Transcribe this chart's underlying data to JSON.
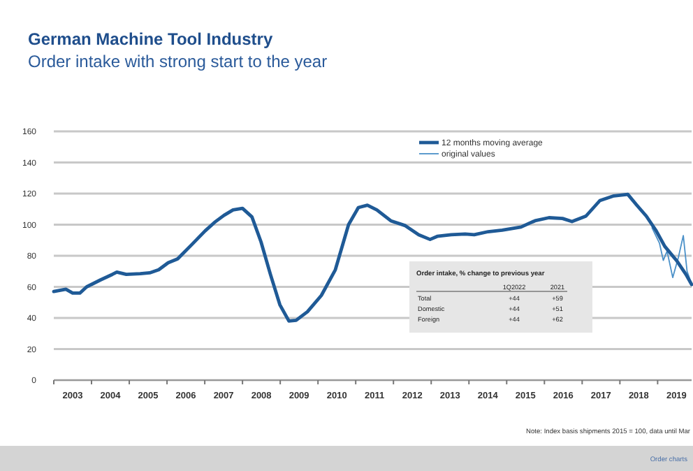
{
  "chart_data": {
    "type": "line",
    "title": "German Machine  Tool Industry",
    "subtitle": "Order intake with strong start to the year",
    "xlim": [
      2003,
      2019.9
    ],
    "xticks": [
      {
        "value": 2003,
        "label": null
      },
      {
        "value": 2003.5,
        "label": "2003"
      },
      {
        "value": 2004,
        "label": null
      },
      {
        "value": 2004.5,
        "label": "2004"
      },
      {
        "value": 2005,
        "label": null
      },
      {
        "value": 2005.5,
        "label": "2005"
      },
      {
        "value": 2006,
        "label": null
      },
      {
        "value": 2006.5,
        "label": "2006"
      },
      {
        "value": 2007,
        "label": null
      },
      {
        "value": 2007.5,
        "label": "2007"
      },
      {
        "value": 2008,
        "label": null
      },
      {
        "value": 2008.5,
        "label": "2008"
      },
      {
        "value": 2009,
        "label": null
      },
      {
        "value": 2009.5,
        "label": "2009"
      },
      {
        "value": 2010,
        "label": null
      },
      {
        "value": 2010.5,
        "label": "2010"
      },
      {
        "value": 2011,
        "label": null
      },
      {
        "value": 2011.5,
        "label": "2011"
      },
      {
        "value": 2012,
        "label": null
      },
      {
        "value": 2012.5,
        "label": "2012"
      },
      {
        "value": 2013,
        "label": null
      },
      {
        "value": 2013.5,
        "label": "2013"
      },
      {
        "value": 2014,
        "label": null
      },
      {
        "value": 2014.5,
        "label": "2014"
      },
      {
        "value": 2015,
        "label": null
      },
      {
        "value": 2015.5,
        "label": "2015"
      },
      {
        "value": 2016,
        "label": null
      },
      {
        "value": 2016.5,
        "label": "2016"
      },
      {
        "value": 2017,
        "label": null
      },
      {
        "value": 2017.5,
        "label": "2017"
      },
      {
        "value": 2018,
        "label": null
      },
      {
        "value": 2018.5,
        "label": "2018"
      },
      {
        "value": 2019,
        "label": null
      },
      {
        "value": 2019.5,
        "label": "2019"
      }
    ],
    "ylim": [
      0,
      160
    ],
    "yticks": [
      0,
      20,
      40,
      60,
      80,
      100,
      120,
      140,
      160
    ],
    "grid": "y",
    "legend": "top right",
    "marker": "none",
    "line_style": "solid",
    "series": [
      {
        "name": "12 months moving average",
        "color": "#1f5a96",
        "x": [
          2003,
          2003.32,
          2003.5,
          2003.69,
          2003.87,
          2004.24,
          2004.55,
          2004.67,
          2004.92,
          2005.29,
          2005.54,
          2005.78,
          2006.03,
          2006.28,
          2006.65,
          2007.01,
          2007.26,
          2007.51,
          2007.75,
          2008,
          2008.25,
          2008.49,
          2008.74,
          2008.99,
          2009.23,
          2009.42,
          2009.72,
          2010.09,
          2010.46,
          2010.81,
          2011.07,
          2011.31,
          2011.56,
          2011.93,
          2012.3,
          2012.67,
          2012.97,
          2013.16,
          2013.53,
          2013.9,
          2014.14,
          2014.51,
          2014.88,
          2015.38,
          2015.75,
          2016.12,
          2016.48,
          2016.73,
          2017.1,
          2017.47,
          2017.84,
          2018.21,
          2018.45,
          2018.7,
          2018.95,
          2019.19,
          2019.5,
          2019.75,
          2019.9
        ],
        "values": [
          57,
          58.5,
          56,
          56,
          60,
          64.5,
          68,
          69.5,
          68,
          68.5,
          69,
          71,
          75.5,
          78,
          87,
          96,
          101.5,
          106,
          109.5,
          110.5,
          105,
          89,
          68,
          48.5,
          38,
          38.5,
          44,
          54.5,
          71,
          100,
          111,
          112.5,
          109.5,
          102.5,
          99.5,
          93.5,
          90.5,
          92.5,
          93.5,
          94,
          93.5,
          95.5,
          96.5,
          98.5,
          102.5,
          104.5,
          104,
          102,
          105.5,
          115.5,
          118.5,
          119.5,
          112.5,
          105.5,
          96.5,
          86,
          77,
          68,
          61.5
        ]
      },
      {
        "name": "original values",
        "color": "#4a90c8",
        "x": [
          2018.85,
          2019.05,
          2019.15,
          2019.25,
          2019.4,
          2019.55,
          2019.68,
          2019.78,
          2019.9
        ],
        "values": [
          98,
          88,
          77,
          83,
          66,
          79,
          93,
          70,
          62
        ]
      }
    ],
    "annotations": [
      "Order intake, % change to previous year",
      "1Q2022",
      "2021",
      "Total",
      "+44",
      "+59",
      "Domestic",
      "+44",
      "+51",
      "Foreign",
      "+44",
      "+62",
      "Note: Index basis shipments 2015 = 100, data until Mar",
      "Order charts"
    ]
  }
}
